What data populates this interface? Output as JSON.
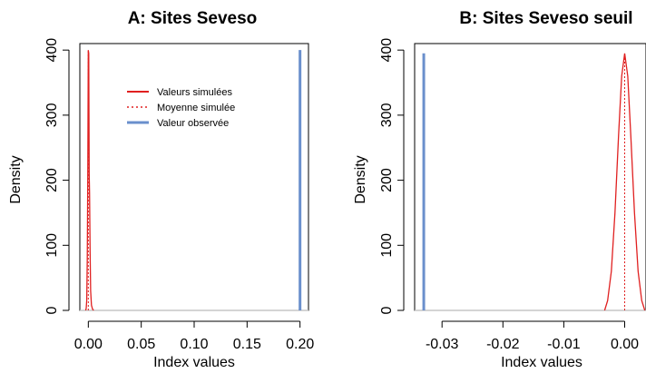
{
  "chart_data": [
    {
      "type": "line",
      "title": "A: Sites Seveso",
      "xlabel": "Index values",
      "ylabel": "Density",
      "xlim": [
        -0.008,
        0.208
      ],
      "ylim": [
        0,
        410
      ],
      "x_ticks": [
        0.0,
        0.05,
        0.1,
        0.15,
        0.2
      ],
      "x_tick_labels": [
        "0.00",
        "0.05",
        "0.10",
        "0.15",
        "0.20"
      ],
      "y_ticks": [
        0,
        100,
        200,
        300,
        400
      ],
      "y_tick_labels": [
        "0",
        "100",
        "200",
        "300",
        "400"
      ],
      "series": [
        {
          "name": "Valeurs simulées",
          "color": "#e02020",
          "style": "solid",
          "points": [
            [
              -0.0025,
              0
            ],
            [
              -0.002,
              3
            ],
            [
              -0.0015,
              15
            ],
            [
              -0.001,
              80
            ],
            [
              -0.0005,
              220
            ],
            [
              0.0,
              400
            ],
            [
              0.0004,
              395
            ],
            [
              0.0008,
              210
            ],
            [
              0.0012,
              180
            ],
            [
              0.0017,
              90
            ],
            [
              0.0022,
              30
            ],
            [
              0.003,
              8
            ],
            [
              0.004,
              2
            ],
            [
              0.005,
              0
            ]
          ]
        }
      ],
      "mean_simulated": {
        "name": "Moyenne simulée",
        "x": 0.0,
        "color": "#e02020",
        "style": "dotted"
      },
      "observed": {
        "name": "Valeur observée",
        "x": 0.2,
        "color": "#6a8fcc"
      },
      "baseline_color": "#bbbbbb",
      "legend": {
        "position": "top-center"
      }
    },
    {
      "type": "line",
      "title": "B: Sites Seveso seuil",
      "xlabel": "Index values",
      "ylabel": "Density",
      "xlim": [
        -0.0345,
        0.0035
      ],
      "ylim": [
        0,
        410
      ],
      "x_ticks": [
        -0.03,
        -0.02,
        -0.01,
        0.0
      ],
      "x_tick_labels": [
        "-0.03",
        "-0.02",
        "-0.01",
        "0.00"
      ],
      "y_ticks": [
        0,
        100,
        200,
        300,
        400
      ],
      "y_tick_labels": [
        "0",
        "100",
        "200",
        "300",
        "400"
      ],
      "series": [
        {
          "name": "Valeurs simulées",
          "color": "#e02020",
          "style": "solid",
          "points": [
            [
              -0.0033,
              0
            ],
            [
              -0.0028,
              15
            ],
            [
              -0.0022,
              60
            ],
            [
              -0.0016,
              150
            ],
            [
              -0.001,
              270
            ],
            [
              -0.0005,
              360
            ],
            [
              0.0,
              395
            ],
            [
              0.0005,
              360
            ],
            [
              0.001,
              270
            ],
            [
              0.0016,
              150
            ],
            [
              0.0022,
              60
            ],
            [
              0.0028,
              15
            ],
            [
              0.0033,
              0
            ]
          ]
        }
      ],
      "mean_simulated": {
        "name": "Moyenne simulée",
        "x": 0.0,
        "color": "#e02020",
        "style": "dotted"
      },
      "observed": {
        "name": "Valeur observée",
        "x": -0.033,
        "color": "#6a8fcc"
      },
      "baseline_color": "#bbbbbb",
      "legend": {
        "position": "none"
      }
    }
  ]
}
